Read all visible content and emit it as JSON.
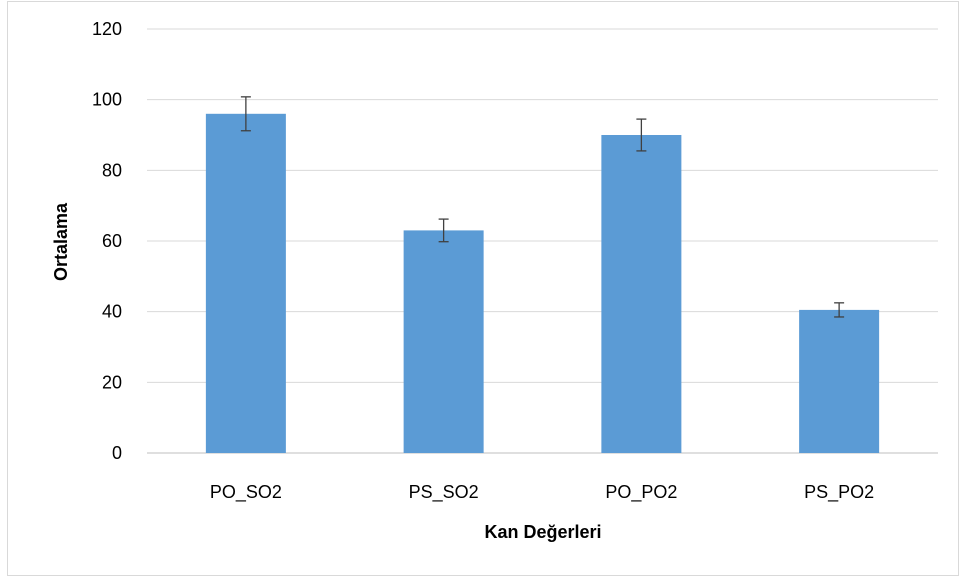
{
  "chart_data": {
    "type": "bar",
    "title": "",
    "xlabel": "Kan Değerleri",
    "ylabel": "Ortalama",
    "categories": [
      "PO_SO2",
      "PS_SO2",
      "PO_PO2",
      "PS_PO2"
    ],
    "values": [
      96,
      63,
      90,
      40.5
    ],
    "error": [
      4.8,
      3.2,
      4.5,
      2.0
    ],
    "ylim": [
      0,
      120
    ],
    "yticks": [
      0,
      20,
      40,
      60,
      80,
      100,
      120
    ],
    "grid": true,
    "legend": "none",
    "colors": {
      "bar": "#5b9bd5",
      "grid": "#d9d9d9",
      "error_bar": "#404040",
      "axis": "#bfbfbf"
    }
  }
}
